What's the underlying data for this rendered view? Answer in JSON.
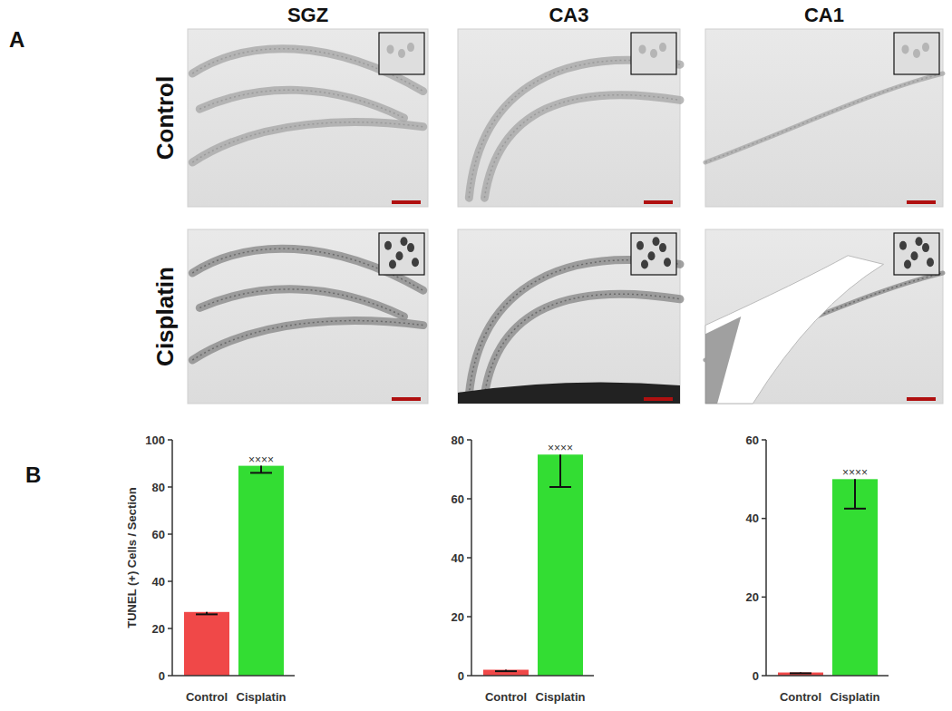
{
  "figure": {
    "panel_labels": [
      "A",
      "B"
    ],
    "columns": [
      "SGZ",
      "CA3",
      "CA1"
    ],
    "rows": [
      "Control",
      "Cisplatin"
    ]
  },
  "chart_data": [
    {
      "type": "bar",
      "categories": [
        "Control",
        "Cisplatin"
      ],
      "values": [
        27,
        89
      ],
      "errors": [
        1,
        3
      ],
      "colors": [
        "#f04848",
        "#33dd33"
      ],
      "ylim": [
        0,
        100
      ],
      "yticks": [
        0,
        20,
        40,
        60,
        80,
        100
      ],
      "y_label": "TUNEL (+) Cells / Section",
      "annotations": [
        {
          "text": "××××",
          "x": "Cisplatin"
        }
      ]
    },
    {
      "type": "bar",
      "categories": [
        "Control",
        "Cisplatin"
      ],
      "values": [
        2,
        75
      ],
      "errors": [
        0.5,
        11
      ],
      "colors": [
        "#f04848",
        "#33dd33"
      ],
      "ylim": [
        0,
        80
      ],
      "yticks": [
        0,
        20,
        40,
        60,
        80
      ],
      "annotations": [
        {
          "text": "××××",
          "x": "Cisplatin"
        }
      ]
    },
    {
      "type": "bar",
      "categories": [
        "Control",
        "Cisplatin"
      ],
      "values": [
        0.8,
        50
      ],
      "errors": [
        0.2,
        7.5
      ],
      "colors": [
        "#f04848",
        "#33dd33"
      ],
      "ylim": [
        0,
        60
      ],
      "yticks": [
        0,
        20,
        40,
        60
      ],
      "annotations": [
        {
          "text": "××××",
          "x": "Cisplatin"
        }
      ]
    }
  ]
}
